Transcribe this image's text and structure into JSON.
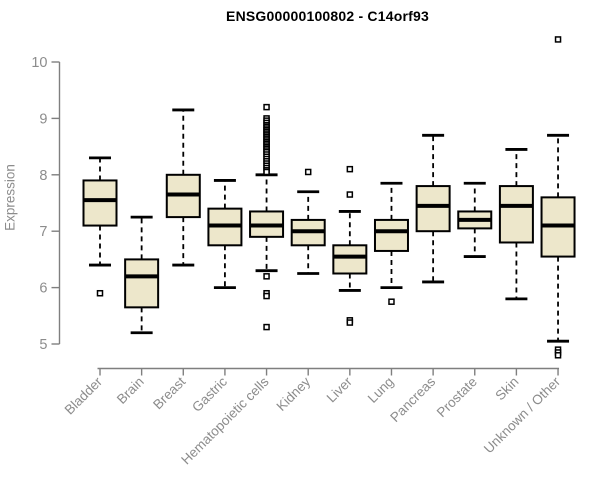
{
  "chart_data": {
    "type": "boxplot",
    "title": "ENSG00000100802 - C14orf93",
    "ylabel": "Expression",
    "xlabel": "",
    "ylim": [
      5,
      10
    ],
    "yticks": [
      5,
      6,
      7,
      8,
      9,
      10
    ],
    "grid": false,
    "legend": "none",
    "categories": [
      "Bladder",
      "Brain",
      "Breast",
      "Gastric",
      "Hematopoietic cells",
      "Kidney",
      "Liver",
      "Lung",
      "Pancreas",
      "Prostate",
      "Skin",
      "Unknown / Other"
    ],
    "series": [
      {
        "label": "Bladder",
        "whislo": 6.4,
        "q1": 7.1,
        "med": 7.55,
        "q3": 7.9,
        "whishi": 8.3,
        "outliers": [
          5.9
        ]
      },
      {
        "label": "Brain",
        "whislo": 5.2,
        "q1": 5.65,
        "med": 6.2,
        "q3": 6.5,
        "whishi": 7.25,
        "outliers": []
      },
      {
        "label": "Breast",
        "whislo": 6.4,
        "q1": 7.25,
        "med": 7.65,
        "q3": 8.0,
        "whishi": 9.15,
        "outliers": []
      },
      {
        "label": "Gastric",
        "whislo": 6.0,
        "q1": 6.75,
        "med": 7.1,
        "q3": 7.4,
        "whishi": 7.9,
        "outliers": []
      },
      {
        "label": "Hematopoietic cells",
        "whislo": 6.3,
        "q1": 6.9,
        "med": 7.1,
        "q3": 7.35,
        "whishi": 8.0,
        "outliers": [
          9.2,
          9.0,
          8.96,
          8.92,
          8.88,
          8.85,
          8.82,
          8.79,
          8.76,
          8.73,
          8.7,
          8.67,
          8.64,
          8.61,
          8.58,
          8.55,
          8.52,
          8.49,
          8.46,
          8.43,
          8.4,
          8.36,
          8.32,
          8.28,
          8.24,
          8.2,
          8.16,
          8.12,
          8.08,
          8.05,
          6.2,
          5.9,
          5.85,
          5.3
        ]
      },
      {
        "label": "Kidney",
        "whislo": 6.25,
        "q1": 6.75,
        "med": 7.0,
        "q3": 7.2,
        "whishi": 7.7,
        "outliers": [
          8.05
        ]
      },
      {
        "label": "Liver",
        "whislo": 5.95,
        "q1": 6.25,
        "med": 6.55,
        "q3": 6.75,
        "whishi": 7.35,
        "outliers": [
          8.1,
          7.65,
          5.42,
          5.38
        ]
      },
      {
        "label": "Lung",
        "whislo": 6.0,
        "q1": 6.65,
        "med": 7.0,
        "q3": 7.2,
        "whishi": 7.85,
        "outliers": [
          5.75
        ]
      },
      {
        "label": "Pancreas",
        "whislo": 6.1,
        "q1": 7.0,
        "med": 7.45,
        "q3": 7.8,
        "whishi": 8.7,
        "outliers": []
      },
      {
        "label": "Prostate",
        "whislo": 6.55,
        "q1": 7.05,
        "med": 7.2,
        "q3": 7.35,
        "whishi": 7.85,
        "outliers": []
      },
      {
        "label": "Skin",
        "whislo": 5.8,
        "q1": 6.8,
        "med": 7.45,
        "q3": 7.8,
        "whishi": 8.45,
        "outliers": []
      },
      {
        "label": "Unknown / Other",
        "whislo": 5.05,
        "q1": 6.55,
        "med": 7.1,
        "q3": 7.6,
        "whishi": 8.7,
        "outliers": [
          10.4,
          4.9,
          4.85,
          4.8
        ]
      }
    ],
    "colors": {
      "box_fill": "#ede7cb",
      "box_stroke": "#000000",
      "median": "#000000",
      "whisker": "#000000",
      "outlier_stroke": "#000000",
      "outlier_fill": "#ffffff",
      "axis": "#7f7f7f",
      "tick_label": "#8c8c8c",
      "title": "#000000"
    }
  }
}
